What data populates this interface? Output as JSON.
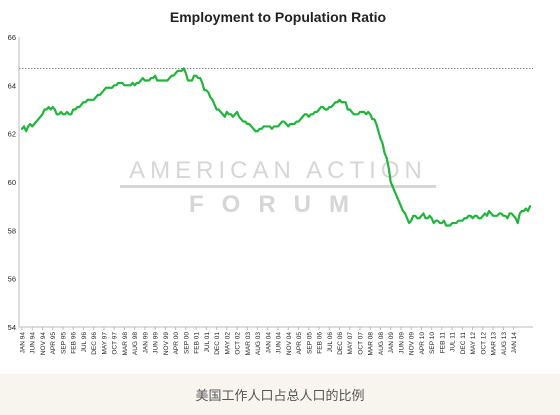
{
  "caption": "美国工作人口占总人口的比例",
  "colors": {
    "line": "#1fb43a",
    "reference": "#777777",
    "axis": "#bbbbbb",
    "watermark": "#d6d6d6",
    "text": "#222222",
    "caption_bg": "#f7f5ee"
  },
  "watermark": {
    "line1": "AMERICAN ACTION",
    "line2": "FORUM"
  },
  "chart_data": {
    "type": "line",
    "title": "Employment to Population Ratio",
    "xlabel": "",
    "ylabel": "",
    "ylim": [
      54,
      66
    ],
    "yticks": [
      54,
      56,
      58,
      60,
      62,
      64,
      66
    ],
    "reference_line": 64.7,
    "grid": false,
    "xticks": [
      "JAN 94",
      "JUN 94",
      "NOV 94",
      "APR 95",
      "SEP 95",
      "FEB 96",
      "JUL 96",
      "DEC 96",
      "MAY 97",
      "OCT 97",
      "MAR 98",
      "AUG 98",
      "JAN 99",
      "JUN 99",
      "NOV 99",
      "APR 00",
      "SEP 00",
      "FEB 01",
      "JUL 01",
      "DEC 01",
      "MAY 02",
      "OCT 02",
      "MAR 03",
      "AUG 03",
      "JAN 04",
      "JUN 04",
      "NOV 04",
      "APR 05",
      "SEP 05",
      "FEB 06",
      "JUL 06",
      "DEC 06",
      "MAY 07",
      "OCT 07",
      "MAR 08",
      "AUG 08",
      "JAN 09",
      "JUN 09",
      "NOV 09",
      "APR 10",
      "SEP 10",
      "FEB 11",
      "JUL 11",
      "DEC 11",
      "MAY 12",
      "OCT 12",
      "MAR 13",
      "AUG 13",
      "JAN 14"
    ],
    "series": [
      {
        "x_first": "JAN 94",
        "x_last": "FEB 14",
        "values": [
          62.2,
          62.3,
          62.1,
          62.3,
          62.4,
          62.3,
          62.4,
          62.5,
          62.6,
          62.7,
          62.8,
          63.0,
          63.0,
          63.1,
          63.0,
          63.1,
          63.0,
          62.8,
          62.8,
          62.9,
          62.8,
          62.8,
          62.9,
          62.8,
          62.8,
          63.0,
          63.0,
          63.1,
          63.1,
          63.2,
          63.3,
          63.3,
          63.4,
          63.4,
          63.4,
          63.4,
          63.5,
          63.6,
          63.6,
          63.7,
          63.8,
          63.9,
          63.9,
          63.9,
          63.9,
          64.0,
          64.0,
          64.1,
          64.1,
          64.1,
          64.0,
          64.0,
          64.0,
          64.0,
          64.1,
          64.0,
          64.1,
          64.1,
          64.2,
          64.3,
          64.2,
          64.2,
          64.2,
          64.3,
          64.3,
          64.4,
          64.2,
          64.2,
          64.2,
          64.2,
          64.2,
          64.2,
          64.3,
          64.4,
          64.4,
          64.5,
          64.6,
          64.6,
          64.6,
          64.7,
          64.5,
          64.2,
          64.2,
          64.2,
          64.4,
          64.4,
          64.3,
          64.3,
          64.1,
          63.8,
          63.8,
          63.7,
          63.5,
          63.4,
          63.2,
          63.0,
          63.0,
          62.9,
          62.8,
          62.7,
          62.9,
          62.8,
          62.8,
          62.7,
          62.8,
          62.9,
          62.7,
          62.6,
          62.5,
          62.5,
          62.4,
          62.4,
          62.3,
          62.2,
          62.1,
          62.1,
          62.2,
          62.2,
          62.3,
          62.3,
          62.3,
          62.3,
          62.2,
          62.3,
          62.3,
          62.3,
          62.4,
          62.5,
          62.5,
          62.4,
          62.3,
          62.4,
          62.4,
          62.4,
          62.5,
          62.5,
          62.6,
          62.7,
          62.8,
          62.8,
          62.7,
          62.8,
          62.8,
          62.9,
          62.9,
          63.0,
          63.1,
          63.1,
          63.0,
          63.0,
          63.1,
          63.1,
          63.2,
          63.3,
          63.3,
          63.4,
          63.3,
          63.3,
          63.3,
          63.0,
          63.0,
          62.9,
          62.8,
          62.8,
          62.8,
          62.9,
          62.9,
          62.9,
          62.8,
          62.9,
          62.8,
          62.6,
          62.6,
          62.4,
          62.1,
          61.8,
          61.6,
          61.2,
          61.0,
          60.6,
          60.0,
          59.8,
          59.6,
          59.4,
          59.2,
          59.0,
          58.8,
          58.7,
          58.5,
          58.3,
          58.4,
          58.6,
          58.6,
          58.5,
          58.5,
          58.6,
          58.7,
          58.5,
          58.5,
          58.6,
          58.5,
          58.3,
          58.4,
          58.4,
          58.3,
          58.3,
          58.4,
          58.2,
          58.2,
          58.2,
          58.3,
          58.3,
          58.3,
          58.4,
          58.4,
          58.4,
          58.5,
          58.5,
          58.6,
          58.6,
          58.5,
          58.6,
          58.6,
          58.5,
          58.5,
          58.6,
          58.7,
          58.6,
          58.8,
          58.7,
          58.6,
          58.6,
          58.6,
          58.7,
          58.7,
          58.6,
          58.6,
          58.5,
          58.7,
          58.7,
          58.6,
          58.5,
          58.3,
          58.7,
          58.8,
          58.8,
          58.9,
          58.8,
          59.0
        ]
      }
    ]
  }
}
